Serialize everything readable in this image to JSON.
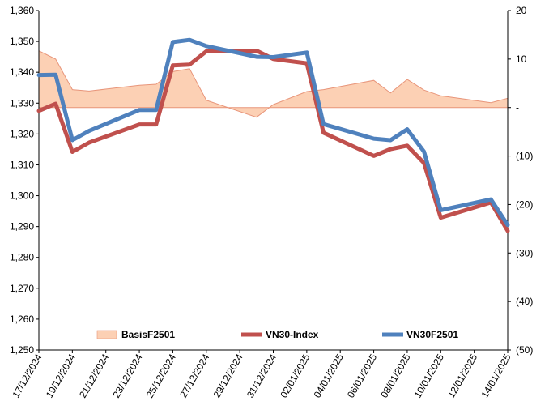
{
  "chart_data": {
    "type": "line",
    "x": [
      "17/12/2024",
      "18/12/2024",
      "19/12/2024",
      "20/12/2024",
      "23/12/2024",
      "24/12/2024",
      "25/12/2024",
      "26/12/2024",
      "27/12/2024",
      "30/12/2024",
      "31/12/2024",
      "02/01/2025",
      "03/01/2025",
      "06/01/2025",
      "07/01/2025",
      "08/01/2025",
      "09/01/2025",
      "10/01/2025",
      "13/01/2025",
      "14/01/2025"
    ],
    "x_dates": [
      "2024-12-17",
      "2024-12-18",
      "2024-12-19",
      "2024-12-20",
      "2024-12-23",
      "2024-12-24",
      "2024-12-25",
      "2024-12-26",
      "2024-12-27",
      "2024-12-30",
      "2024-12-31",
      "2025-01-02",
      "2025-01-03",
      "2025-01-06",
      "2025-01-07",
      "2025-01-08",
      "2025-01-09",
      "2025-01-10",
      "2025-01-13",
      "2025-01-14"
    ],
    "x_ticks": [
      "17/12/2024",
      "19/12/2024",
      "21/12/2024",
      "23/12/2024",
      "25/12/2024",
      "27/12/2024",
      "29/12/2024",
      "31/12/2024",
      "02/01/2025",
      "04/01/2025",
      "06/01/2025",
      "08/01/2025",
      "10/01/2025",
      "12/01/2025",
      "14/01/2025"
    ],
    "x_range": [
      "2024-12-17",
      "2025-01-14"
    ],
    "series": [
      {
        "name": "BasisF2501",
        "kind": "area",
        "axis": "right",
        "color": "#fcd0b4",
        "edge_color": "#e8957a",
        "values": [
          11.7,
          10.0,
          3.7,
          3.4,
          4.6,
          4.8,
          7.4,
          8.0,
          1.5,
          -2.0,
          0.6,
          3.3,
          3.7,
          5.6,
          3.0,
          5.8,
          3.6,
          2.4,
          1.0,
          1.9
        ]
      },
      {
        "name": "VN30-Index",
        "kind": "line",
        "axis": "left",
        "color": "#c0504d",
        "values": [
          1327.5,
          1329.8,
          1314.2,
          1317.2,
          1323.1,
          1323.1,
          1342.2,
          1342.5,
          1346.8,
          1347.0,
          1344.3,
          1342.9,
          1320.4,
          1312.9,
          1315.1,
          1316.2,
          1310.6,
          1292.9,
          1297.8,
          1288.6
        ]
      },
      {
        "name": "VN30F2501",
        "kind": "line",
        "axis": "left",
        "color": "#4f81bd",
        "values": [
          1339.1,
          1339.2,
          1318.0,
          1321.0,
          1327.8,
          1327.8,
          1349.8,
          1350.5,
          1348.5,
          1345.0,
          1344.9,
          1346.4,
          1323.2,
          1318.5,
          1318.0,
          1321.5,
          1314.3,
          1295.3,
          1298.8,
          1290.5
        ]
      }
    ],
    "y_left": {
      "range": [
        1250,
        1360
      ],
      "ticks": [
        "1,250",
        "1,260",
        "1,270",
        "1,280",
        "1,290",
        "1,300",
        "1,310",
        "1,320",
        "1,330",
        "1,340",
        "1,350",
        "1,360"
      ]
    },
    "y_right": {
      "range": [
        -50,
        20
      ],
      "ticks": [
        "20",
        "10",
        "-",
        "(10)",
        "(20)",
        "(30)",
        "(40)",
        "(50)"
      ]
    },
    "legend": {
      "position": "bottom-inside",
      "entries": [
        "BasisF2501",
        "VN30-Index",
        "VN30F2501"
      ]
    },
    "grid": false,
    "title": "",
    "xlabel": "",
    "ylabel": ""
  }
}
